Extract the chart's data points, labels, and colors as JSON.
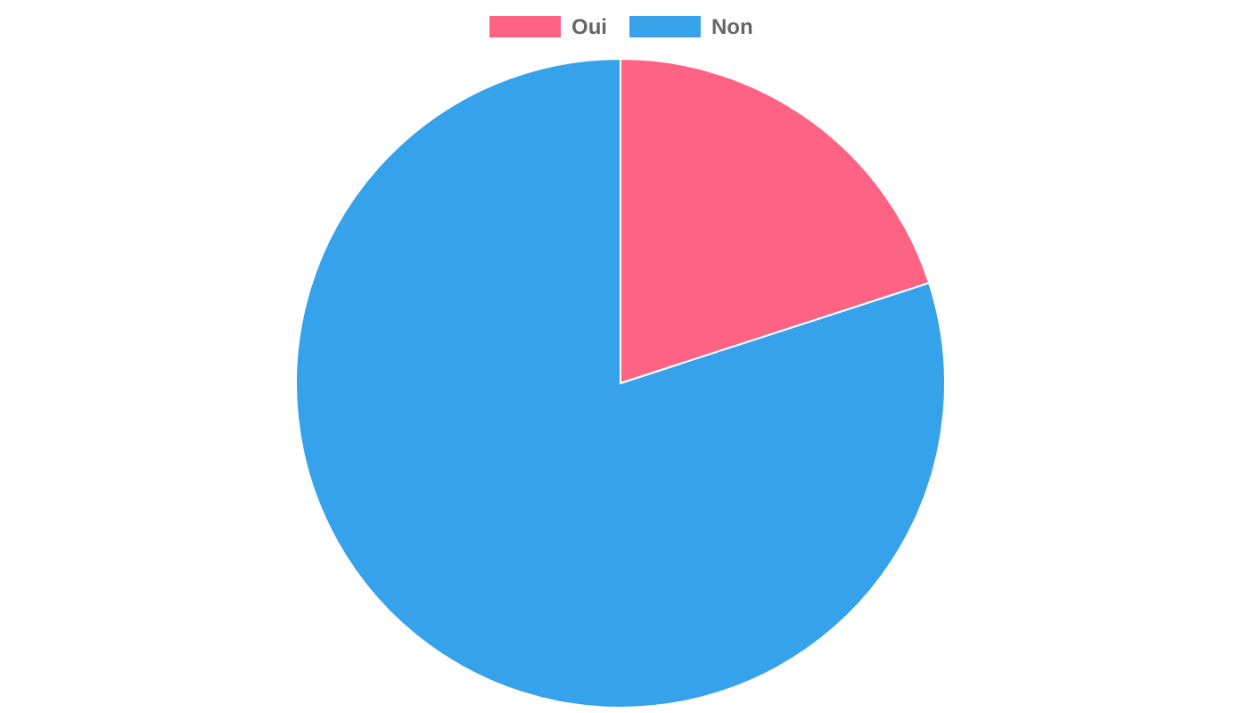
{
  "chart_data": {
    "type": "pie",
    "categories": [
      "Oui",
      "Non"
    ],
    "values": [
      20,
      80
    ],
    "colors": [
      "#ff6384",
      "#36a2eb"
    ],
    "legend": "top"
  }
}
